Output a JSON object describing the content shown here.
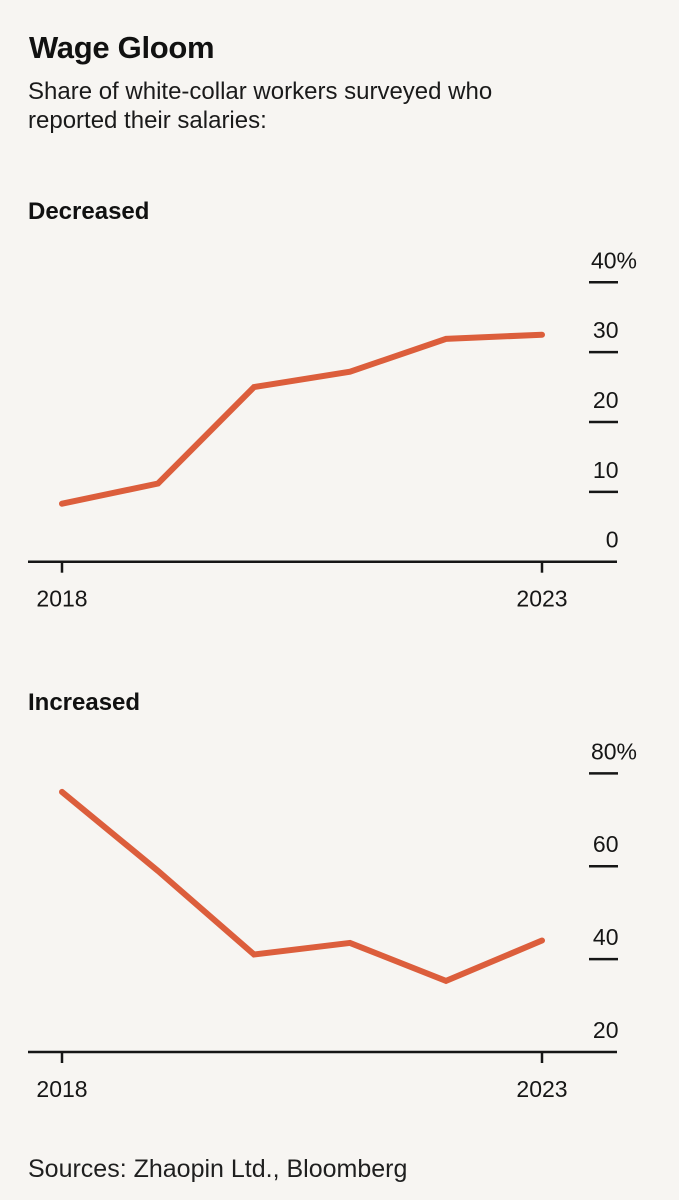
{
  "page": {
    "title": "Wage Gloom",
    "subtitle": "Share of white-collar workers surveyed who reported their salaries:",
    "source": "Sources: Zhaopin Ltd., Bloomberg"
  },
  "colors": {
    "background": "#f7f5f2",
    "line": "#dc5e3c",
    "axis": "#161616",
    "text": "#111111"
  },
  "chart_data": [
    {
      "type": "line",
      "title": "Decreased",
      "x": [
        2018,
        2019,
        2020,
        2021,
        2022,
        2023
      ],
      "values": [
        8.3,
        11.2,
        25.0,
        27.2,
        31.9,
        32.5
      ],
      "xlabel": "",
      "ylabel": "",
      "ylim": [
        0,
        40
      ],
      "yticks": [
        {
          "value": 0,
          "label": "0"
        },
        {
          "value": 10,
          "label": "10"
        },
        {
          "value": 20,
          "label": "20"
        },
        {
          "value": 30,
          "label": "30"
        },
        {
          "value": 40,
          "label": "40%"
        }
      ],
      "xticks": [
        {
          "value": 2018,
          "label": "2018"
        },
        {
          "value": 2023,
          "label": "2023"
        }
      ],
      "grid": false,
      "legend": "none"
    },
    {
      "type": "line",
      "title": "Increased",
      "x": [
        2018,
        2019,
        2020,
        2021,
        2022,
        2023
      ],
      "values": [
        76.0,
        59.0,
        41.0,
        43.5,
        35.3,
        44.0
      ],
      "xlabel": "",
      "ylabel": "",
      "ylim": [
        20,
        80
      ],
      "yticks": [
        {
          "value": 20,
          "label": "20"
        },
        {
          "value": 40,
          "label": "40"
        },
        {
          "value": 60,
          "label": "60"
        },
        {
          "value": 80,
          "label": "80%"
        }
      ],
      "xticks": [
        {
          "value": 2018,
          "label": "2018"
        },
        {
          "value": 2023,
          "label": "2023"
        }
      ],
      "grid": false,
      "legend": "none"
    }
  ]
}
